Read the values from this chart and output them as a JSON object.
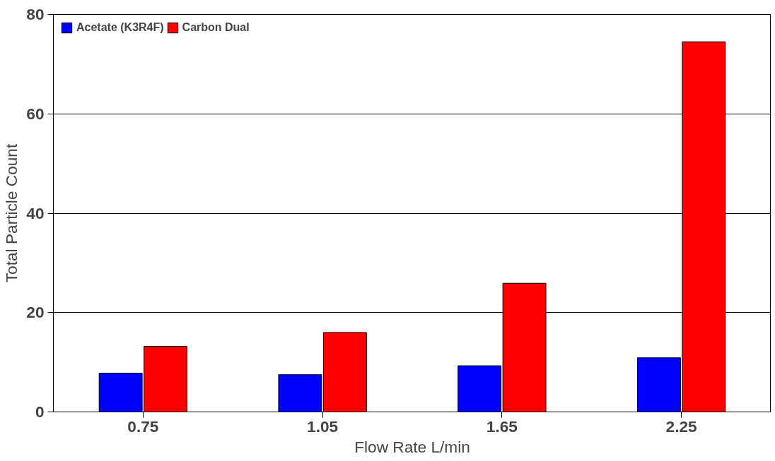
{
  "chart_data": {
    "type": "bar",
    "xlabel": "Flow Rate L/min",
    "ylabel": "Total Particle Count",
    "categories": [
      "0.75",
      "1.05",
      "1.65",
      "2.25"
    ],
    "series": [
      {
        "name": "Acetate (K3R4F)",
        "color": "#0000ff",
        "values": [
          7.8,
          7.5,
          9.3,
          10.9
        ]
      },
      {
        "name": "Carbon Dual",
        "color": "#ff0000",
        "values": [
          13.2,
          16.0,
          25.9,
          74.5
        ]
      }
    ],
    "ylim": [
      0,
      80
    ],
    "yticks": [
      0,
      20,
      40,
      60,
      80
    ],
    "grid": "y",
    "legend": "top left"
  }
}
